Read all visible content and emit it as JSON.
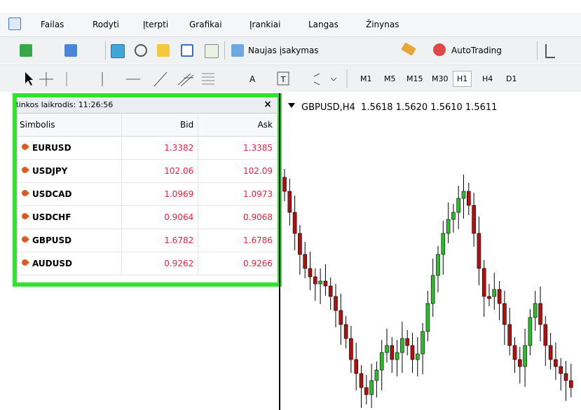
{
  "menu": [
    "Failas",
    "Rodyti",
    "Įterpti",
    "Grafikai",
    "Įrankiai",
    "Langas",
    "Žinynas"
  ],
  "toolbar": {
    "new_order": "Naujas įsakymas",
    "autotrading": "AutoTrading",
    "text_tool": "A",
    "timeframes": [
      "M1",
      "M5",
      "M15",
      "M30",
      "H1",
      "H4",
      "D1"
    ]
  },
  "market_watch": {
    "title": "Rinkos laikrodis: 11:26:56",
    "close": "×",
    "columns": [
      "Simbolis",
      "Bid",
      "Ask"
    ],
    "rows": [
      [
        "EURUSD",
        "1.3382",
        "1.3385"
      ],
      [
        "USDJPY",
        "102.06",
        "102.09"
      ],
      [
        "USDCAD",
        "1.0969",
        "1.0973"
      ],
      [
        "USDCHF",
        "0.9064",
        "0.9068"
      ],
      [
        "GBPUSD",
        "1.6782",
        "1.6786"
      ],
      [
        "AUDUSD",
        "0.9262",
        "0.9266"
      ]
    ]
  },
  "chart": {
    "header": "GBPUSD,H4  1.5618 1.5620 1.5610 1.5611"
  }
}
